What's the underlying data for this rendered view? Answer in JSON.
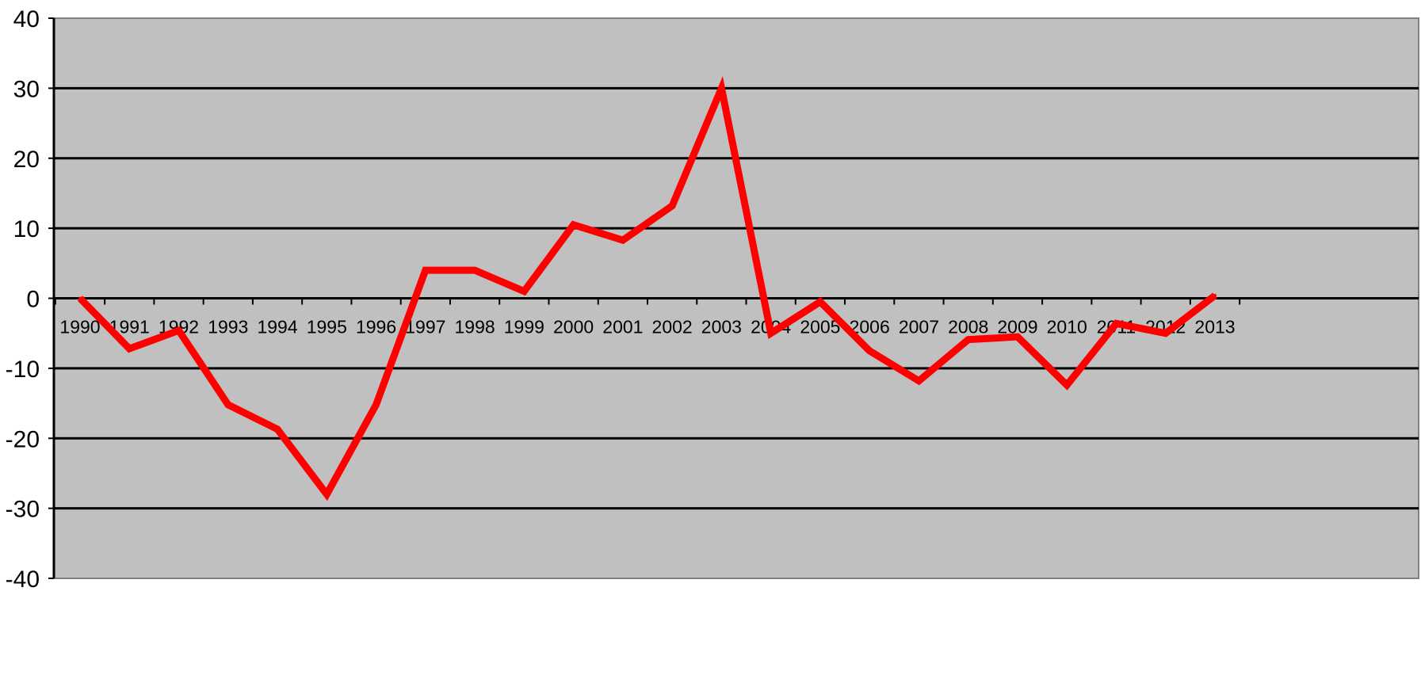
{
  "chart_data": {
    "type": "line",
    "title": "",
    "xlabel": "",
    "ylabel": "",
    "ylim": [
      -40,
      40
    ],
    "yticks": [
      40,
      30,
      20,
      10,
      0,
      -10,
      -20,
      -30,
      -40
    ],
    "ytick_labels": [
      "40",
      "30",
      "20",
      "10",
      "0",
      "-10",
      "-20",
      "-30",
      "-40"
    ],
    "categories": [
      "1990",
      "1991",
      "1992",
      "1993",
      "1994",
      "1995",
      "1996",
      "1997",
      "1998",
      "1999",
      "2000",
      "2001",
      "2002",
      "2003",
      "2004",
      "2005",
      "2006",
      "2007",
      "2008",
      "2009",
      "2010",
      "2011",
      "2012",
      "2013"
    ],
    "series": [
      {
        "name": "",
        "color": "#ff0000",
        "values": [
          0,
          -7.2,
          -4.6,
          -15.2,
          -18.7,
          -28.0,
          -15.2,
          4.0,
          4.0,
          1.0,
          10.5,
          8.3,
          13.2,
          30.0,
          -5.0,
          -0.5,
          -7.5,
          -11.8,
          -5.9,
          -5.5,
          -12.4,
          -3.6,
          -5.0,
          0.4
        ]
      }
    ],
    "grid": true,
    "plot_background": "#c0c0c0",
    "gridline_color": "#000000",
    "legend": "none"
  }
}
